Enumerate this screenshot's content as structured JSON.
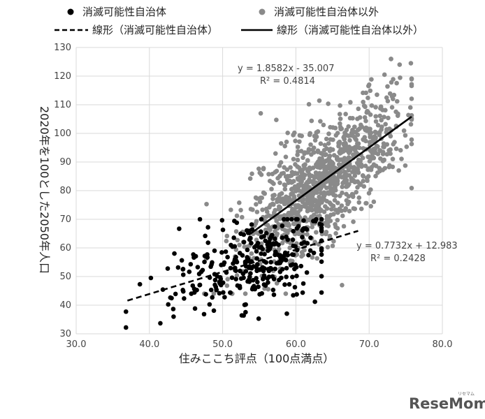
{
  "chart_data": {
    "type": "scatter",
    "xlabel": "住みここち評点（100点満点）",
    "ylabel": "2020年を100とした2050年人口",
    "xlim": [
      30,
      80
    ],
    "ylim": [
      30,
      130
    ],
    "xticks": [
      "30.0",
      "40.0",
      "50.0",
      "60.0",
      "70.0",
      "80.0"
    ],
    "yticks": [
      "30",
      "40",
      "50",
      "60",
      "70",
      "80",
      "90",
      "100",
      "110",
      "120",
      "130"
    ],
    "grid": true,
    "legend_position": "top",
    "legend": [
      {
        "label": "消滅可能性自治体",
        "kind": "dot",
        "color": "#000000"
      },
      {
        "label": "消滅可能性自治体以外",
        "kind": "dot",
        "color": "#8a8a8a"
      },
      {
        "label": "線形（消滅可能性自治体）",
        "kind": "dashed-line",
        "color": "#000000"
      },
      {
        "label": "線形（消滅可能性自治体以外）",
        "kind": "solid-line",
        "color": "#000000"
      }
    ],
    "series": [
      {
        "name": "消滅可能性自治体",
        "color": "#000000",
        "point_count": 300,
        "x_range": [
          36.8,
          63.5
        ],
        "representative_points": [
          [
            36.8,
            32.2
          ],
          [
            38.7,
            47.3
          ],
          [
            40.2,
            49.5
          ],
          [
            43.3,
            36
          ],
          [
            44.6,
            52.6
          ],
          [
            48.8,
            38.1
          ],
          [
            48,
            67.2
          ],
          [
            51.6,
            69.4
          ],
          [
            53,
            40.1
          ],
          [
            56.5,
            60.2
          ],
          [
            57.7,
            48.8
          ],
          [
            60.1,
            50.2
          ],
          [
            61.5,
            51.4
          ],
          [
            62.6,
            41.2
          ],
          [
            63.5,
            55.2
          ]
        ],
        "trendline": {
          "slope": 0.7732,
          "intercept": 12.983,
          "r2": 0.2428,
          "style": "dashed",
          "x_range": [
            37,
            68.5
          ]
        }
      },
      {
        "name": "消滅可能性自治体以外",
        "color": "#8a8a8a",
        "point_count": 1050,
        "x_range": [
          47.5,
          75.8
        ],
        "representative_points": [
          [
            47.8,
            75.3
          ],
          [
            50.5,
            62.4
          ],
          [
            55.2,
            107
          ],
          [
            59.2,
            54.7
          ],
          [
            62.1,
            92.6
          ],
          [
            66.3,
            47
          ],
          [
            70,
            117
          ],
          [
            72.1,
            120.5
          ],
          [
            75.7,
            124.5
          ],
          [
            73.4,
            113.4
          ],
          [
            74.3,
            94.1
          ],
          [
            67.2,
            78
          ]
        ],
        "trendline": {
          "slope": 1.8582,
          "intercept": -35.007,
          "r2": 0.4814,
          "style": "solid",
          "x_range": [
            53.6,
            75.8
          ]
        }
      }
    ],
    "annotations": [
      {
        "text": "y = 1.8582x - 35.007",
        "series": 1
      },
      {
        "text": "R² = 0.4814",
        "series": 1
      },
      {
        "text": "y = 0.7732x + 12.983",
        "series": 0
      },
      {
        "text": "R² = 0.2428",
        "series": 0
      }
    ]
  },
  "watermark": {
    "text": "ReseMom",
    "small_text": "リセマム"
  }
}
